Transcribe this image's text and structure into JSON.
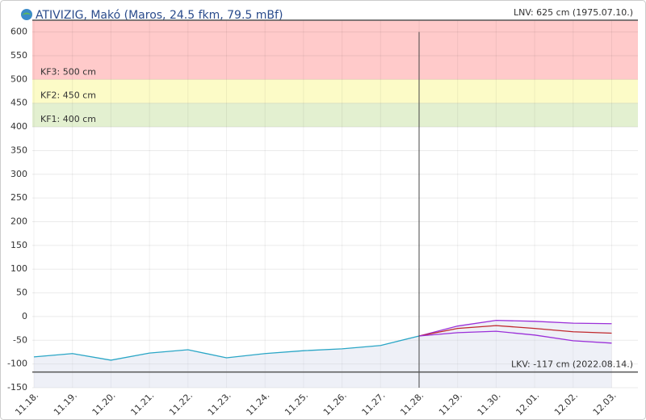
{
  "chart_data": {
    "type": "line",
    "title": "ATIVIZIG, Makó (Maros, 24.5 fkm, 79.5 mBf)",
    "categories": [
      "11.18.",
      "11.19.",
      "11.20.",
      "11.21.",
      "11.22.",
      "11.23.",
      "11.24.",
      "11.25.",
      "11.26.",
      "11.27.",
      "11.28.",
      "11.29.",
      "11.30.",
      "12.01.",
      "12.02.",
      "12.03."
    ],
    "series": [
      {
        "color": "#2aa6c6",
        "values": [
          -85,
          -78,
          -92,
          -77,
          -70,
          -87,
          -78,
          -72,
          -68,
          -61,
          -41,
          null,
          null,
          null,
          null,
          null
        ]
      },
      {
        "color": "#9b30d9",
        "values": [
          null,
          null,
          null,
          null,
          null,
          null,
          null,
          null,
          null,
          null,
          -41,
          -20,
          -8,
          -10,
          -14,
          -15
        ]
      },
      {
        "color": "#c0282d",
        "values": [
          null,
          null,
          null,
          null,
          null,
          null,
          null,
          null,
          null,
          null,
          -41,
          -25,
          -19,
          -25,
          -32,
          -35
        ]
      },
      {
        "color": "#9b30d9",
        "values": [
          null,
          null,
          null,
          null,
          null,
          null,
          null,
          null,
          null,
          null,
          -41,
          -34,
          -31,
          -39,
          -51,
          -56
        ]
      }
    ],
    "ylim": [
      -150,
      625
    ],
    "yticks": [
      -150,
      -100,
      -50,
      0,
      50,
      100,
      150,
      200,
      250,
      300,
      350,
      400,
      450,
      500,
      550,
      600
    ],
    "grid": true,
    "bands": [
      {
        "label": "KF3: 500 cm",
        "from": 500,
        "to": 625,
        "color": "#ffcaca"
      },
      {
        "label": "KF2: 450 cm",
        "from": 450,
        "to": 500,
        "color": "#fcfbc7"
      },
      {
        "label": "KF1: 400 cm",
        "from": 400,
        "to": 450,
        "color": "#e3f0d0"
      }
    ],
    "reference_lines": [
      {
        "label": "LNV: 625 cm (1975.07.10.)",
        "value": 625
      },
      {
        "label": "LKV: -117 cm (2022.08.14.)",
        "value": -117
      }
    ]
  }
}
